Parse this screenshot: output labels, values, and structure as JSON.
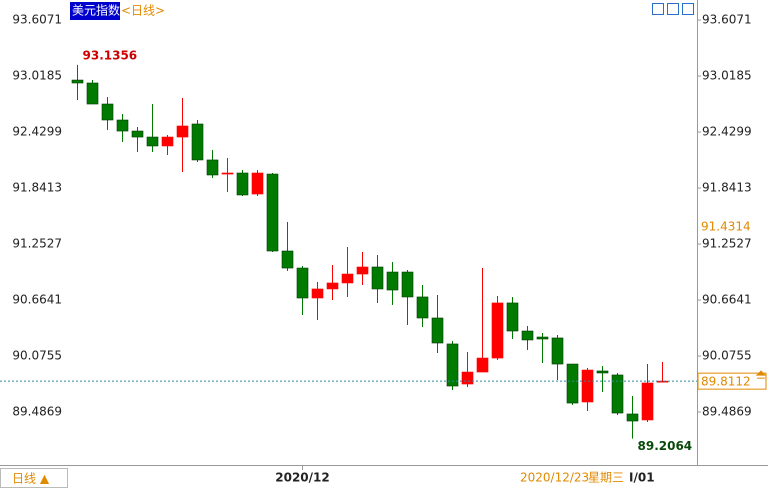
{
  "chart_data": {
    "type": "candlestick",
    "title": "美元指数",
    "period": "<日线>",
    "period_button": "日线 ▲",
    "status_date": "2020/12/23",
    "status_weekday": "星期三",
    "status_extra": "I/01",
    "categories": [
      null,
      null,
      null,
      null,
      null,
      null,
      null,
      null,
      null,
      null,
      null,
      null,
      null,
      null,
      null,
      "2020/12",
      null,
      null,
      null,
      null,
      null,
      null,
      null,
      null,
      null,
      null,
      null,
      null,
      null,
      null,
      null,
      null,
      null,
      null,
      null,
      null,
      null,
      null,
      null,
      null
    ],
    "open": [
      92.976,
      92.945,
      92.724,
      92.556,
      92.44,
      92.377,
      92.283,
      92.377,
      92.514,
      92.136,
      91.988,
      91.999,
      91.778,
      91.988,
      91.179,
      91.0,
      90.685,
      90.78,
      90.843,
      90.937,
      91.011,
      90.958,
      90.958,
      90.696,
      90.475,
      90.202,
      89.781,
      89.907,
      90.054,
      90.633,
      90.338,
      90.275,
      90.265,
      89.991,
      89.592,
      89.918,
      89.876,
      89.466,
      89.403,
      89.8
    ],
    "high": [
      93.1356,
      92.976,
      92.798,
      92.619,
      92.482,
      92.724,
      92.398,
      92.787,
      92.556,
      92.241,
      92.157,
      92.03,
      92.03,
      91.999,
      91.484,
      91.021,
      90.853,
      91.032,
      91.221,
      91.169,
      91.137,
      91.063,
      90.979,
      90.822,
      90.717,
      90.233,
      90.117,
      91.0,
      90.706,
      90.696,
      90.391,
      90.317,
      90.296,
      89.991,
      89.949,
      89.97,
      89.897,
      89.655,
      89.991,
      90.012
    ],
    "low": [
      92.766,
      92.724,
      92.451,
      92.325,
      92.22,
      92.22,
      92.188,
      92.009,
      92.115,
      91.946,
      91.799,
      91.757,
      91.757,
      91.169,
      90.969,
      90.506,
      90.454,
      90.664,
      90.696,
      90.822,
      90.633,
      90.611,
      90.401,
      90.38,
      90.107,
      89.718,
      89.75,
      89.907,
      90.033,
      90.254,
      90.138,
      90.002,
      89.823,
      89.56,
      89.497,
      89.697,
      89.455,
      89.2064,
      89.382,
      89.8
    ],
    "close": [
      92.945,
      92.724,
      92.556,
      92.44,
      92.377,
      92.283,
      92.377,
      92.493,
      92.136,
      91.978,
      91.999,
      91.768,
      91.999,
      91.179,
      91.0,
      90.685,
      90.78,
      90.843,
      90.937,
      91.011,
      90.78,
      90.769,
      90.696,
      90.475,
      90.212,
      89.76,
      89.907,
      90.054,
      90.633,
      90.338,
      90.244,
      90.254,
      89.991,
      89.581,
      89.928,
      89.897,
      89.476,
      89.392,
      89.792,
      89.8112
    ],
    "up_color": "#ff0000",
    "down_color": "#007a00",
    "cursor_value": 91.4314,
    "ylim": [
      88.9613,
      93.6912
    ],
    "yticks": [
      89.4869,
      90.0755,
      90.6641,
      91.2527,
      91.8413,
      92.4299,
      93.0185,
      93.6071
    ]
  }
}
